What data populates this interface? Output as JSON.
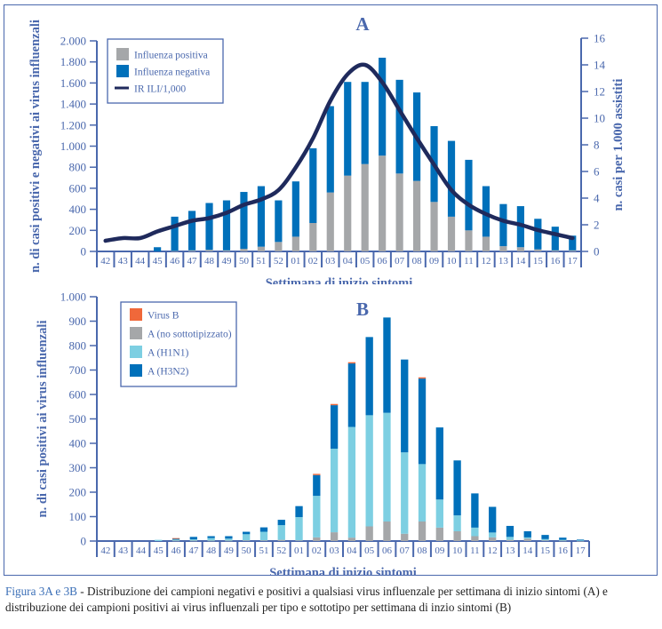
{
  "chart_data": [
    {
      "id": "A",
      "type": "bar",
      "title": "A",
      "stacked": true,
      "categories": [
        "42",
        "43",
        "44",
        "45",
        "46",
        "47",
        "48",
        "49",
        "50",
        "51",
        "52",
        "01",
        "02",
        "03",
        "04",
        "05",
        "06",
        "07",
        "08",
        "09",
        "10",
        "11",
        "12",
        "13",
        "14",
        "15",
        "16",
        "17"
      ],
      "series": [
        {
          "name": "Influenza positiva",
          "color": "#a5a7a9",
          "axis": "left",
          "values": [
            0,
            0,
            0,
            0,
            5,
            10,
            15,
            10,
            25,
            45,
            90,
            140,
            270,
            560,
            720,
            830,
            910,
            740,
            670,
            470,
            330,
            200,
            140,
            50,
            40,
            20,
            10,
            10
          ]
        },
        {
          "name": "Influenza negativa",
          "color": "#0070ba",
          "axis": "left",
          "values": [
            0,
            0,
            0,
            40,
            325,
            375,
            445,
            475,
            540,
            575,
            395,
            525,
            710,
            820,
            890,
            780,
            930,
            890,
            840,
            720,
            720,
            670,
            480,
            400,
            390,
            290,
            225,
            140
          ]
        },
        {
          "name": "IR ILI/1,000",
          "color": "#1f2a5c",
          "type": "line",
          "axis": "right",
          "values": [
            0.8,
            1.0,
            1.0,
            1.5,
            1.9,
            2.3,
            2.5,
            2.9,
            3.5,
            3.9,
            4.6,
            6.3,
            8.5,
            11.3,
            13.3,
            14.0,
            12.7,
            10.6,
            8.5,
            6.5,
            4.6,
            3.5,
            2.8,
            2.3,
            2.0,
            1.6,
            1.3,
            1.0
          ]
        }
      ],
      "xlabel": "Settimana di inizio sintomi",
      "ylabel": "n. di casi positivi e negativi ai virus influenzali",
      "ylabel_right": "n. casi per 1.000 assistiti",
      "ylim": [
        0,
        2000
      ],
      "yticks": [
        "0",
        "200",
        "400",
        "600",
        "800",
        "1.000",
        "1.200",
        "1.400",
        "1.600",
        "1.800",
        "2.000"
      ],
      "ylim_right": [
        0,
        16
      ],
      "yticks_right": [
        "0",
        "2",
        "4",
        "6",
        "8",
        "10",
        "12",
        "14",
        "16"
      ],
      "legend": "top-left",
      "grid": false
    },
    {
      "id": "B",
      "type": "bar",
      "title": "B",
      "stacked": true,
      "categories": [
        "42",
        "43",
        "44",
        "45",
        "46",
        "47",
        "48",
        "49",
        "50",
        "51",
        "52",
        "01",
        "02",
        "03",
        "04",
        "05",
        "06",
        "07",
        "08",
        "09",
        "10",
        "11",
        "12",
        "13",
        "14",
        "15",
        "16",
        "17"
      ],
      "series": [
        {
          "name": "A (no sottotipizzato)",
          "color": "#a5a7a9",
          "values": [
            0,
            0,
            0,
            0,
            2,
            2,
            2,
            2,
            3,
            3,
            5,
            3,
            15,
            36,
            14,
            60,
            80,
            30,
            80,
            55,
            40,
            20,
            15,
            5,
            10,
            3,
            2,
            1
          ]
        },
        {
          "name": "A (H1N1)",
          "color": "#7dcfe2",
          "values": [
            0,
            0,
            0,
            5,
            5,
            5,
            10,
            8,
            25,
            35,
            60,
            95,
            170,
            342,
            453,
            455,
            445,
            333,
            235,
            115,
            65,
            35,
            20,
            12,
            5,
            5,
            3,
            2
          ]
        },
        {
          "name": "A (H3N2)",
          "color": "#0070ba",
          "values": [
            0,
            0,
            0,
            0,
            2,
            10,
            8,
            10,
            10,
            18,
            22,
            45,
            85,
            178,
            260,
            320,
            390,
            380,
            350,
            295,
            225,
            140,
            105,
            45,
            25,
            17,
            9,
            3
          ]
        },
        {
          "name": "Virus B",
          "color": "#f0683a",
          "values": [
            0,
            0,
            0,
            0,
            3,
            0,
            0,
            0,
            0,
            0,
            0,
            0,
            5,
            5,
            5,
            0,
            0,
            0,
            5,
            0,
            0,
            0,
            0,
            0,
            0,
            0,
            0,
            0
          ]
        }
      ],
      "legend_order": [
        "Virus B",
        "A (no sottotipizzato)",
        "A (H1N1)",
        "A (H3N2)"
      ],
      "xlabel": "Settimana di inizio sintomi",
      "ylabel": "n. di casi positivi ai virus influenzali",
      "ylim": [
        0,
        1000
      ],
      "yticks": [
        "0",
        "100",
        "200",
        "300",
        "400",
        "500",
        "600",
        "700",
        "800",
        "900",
        "1.000"
      ],
      "legend": "top-left",
      "grid": false
    }
  ],
  "caption": {
    "lead": "Figura 3A e 3B",
    "text": " - Distribuzione dei campioni negativi e positivi a qualsiasi virus influenzale per settimana di inizio sintomi (A) e distribuzione dei campioni positivi ai virus influenzali per tipo e sottotipo per settimana di inzio sintomi (B)"
  },
  "colors": {
    "axis": "#4a68ad",
    "text": "#4a68ad",
    "title": "#4a68ad"
  }
}
